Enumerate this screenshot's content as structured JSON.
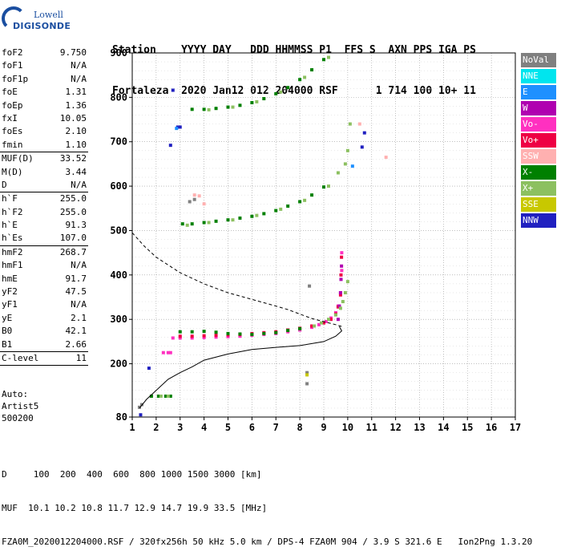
{
  "logo": {
    "brand": "Lowell",
    "product": "DIGISONDE"
  },
  "header": {
    "line1": "Station    YYYY DAY   DDD HHMMSS P1  FFS S  AXN PPS IGA PS",
    "line2": "Fortaleza  2020 Jan12 012 204000 RSF      1 714 100 10+ 11"
  },
  "params": [
    [
      {
        "label": "foF2",
        "value": "9.750"
      },
      {
        "label": "foF1",
        "value": "N/A"
      },
      {
        "label": "foF1p",
        "value": "N/A"
      },
      {
        "label": "foE",
        "value": "1.31"
      },
      {
        "label": "foEp",
        "value": "1.36"
      },
      {
        "label": "fxI",
        "value": "10.05"
      },
      {
        "label": "foEs",
        "value": "2.10"
      },
      {
        "label": "fmin",
        "value": "1.10"
      }
    ],
    [
      {
        "label": "MUF(D)",
        "value": "33.52"
      },
      {
        "label": "M(D)",
        "value": "3.44"
      },
      {
        "label": "D",
        "value": "N/A"
      }
    ],
    [
      {
        "label": "h`F",
        "value": "255.0"
      },
      {
        "label": "h`F2",
        "value": "255.0"
      },
      {
        "label": "h`E",
        "value": "91.3"
      },
      {
        "label": "h`Es",
        "value": "107.0"
      }
    ],
    [
      {
        "label": "hmF2",
        "value": "268.7"
      },
      {
        "label": "hmF1",
        "value": "N/A"
      },
      {
        "label": "hmE",
        "value": "91.7"
      },
      {
        "label": "yF2",
        "value": "47.5"
      },
      {
        "label": "yF1",
        "value": "N/A"
      },
      {
        "label": "yE",
        "value": "2.1"
      },
      {
        "label": "B0",
        "value": "42.1"
      },
      {
        "label": "B1",
        "value": "2.66"
      }
    ],
    [
      {
        "label": "C-level",
        "value": "11"
      }
    ]
  ],
  "auto": {
    "line1": "Auto:",
    "line2": "Artist5",
    "line3": "500200"
  },
  "legend": [
    {
      "label": "NoVal",
      "color": "#808080"
    },
    {
      "label": "NNE",
      "color": "#00e5ee"
    },
    {
      "label": "E",
      "color": "#1e90ff"
    },
    {
      "label": "W",
      "color": "#b000b0"
    },
    {
      "label": "Vo-",
      "color": "#ff30c0"
    },
    {
      "label": "Vo+",
      "color": "#ee0044"
    },
    {
      "label": "SSW",
      "color": "#ffb0b0"
    },
    {
      "label": "X-",
      "color": "#008000"
    },
    {
      "label": "X+",
      "color": "#8cc060"
    },
    {
      "label": "SSE",
      "color": "#c8c800"
    },
    {
      "label": "NNW",
      "color": "#2020c0"
    }
  ],
  "footer": {
    "line1": "D     100  200  400  600  800 1000 1500 3000 [km]",
    "line2": "MUF  10.1 10.2 10.8 11.7 12.9 14.7 19.9 33.5 [MHz]",
    "line3": "FZA0M_2020012204000.RSF / 320fx256h 50 kHz 5.0 km / DPS-4 FZA0M 904 / 3.9 S 321.6 E   Ion2Png 1.3.20"
  },
  "chart_data": {
    "type": "scatter",
    "xlim": [
      1,
      17
    ],
    "ylim": [
      80,
      900
    ],
    "x_ticks": [
      1,
      2,
      3,
      4,
      5,
      6,
      7,
      8,
      9,
      10,
      11,
      12,
      13,
      14,
      15,
      16,
      17
    ],
    "y_ticks": [
      80,
      200,
      300,
      400,
      500,
      600,
      700,
      800,
      900
    ],
    "grid": true,
    "series": [
      {
        "color": "#ff30c0",
        "points": [
          [
            2.3,
            225
          ],
          [
            2.5,
            225
          ],
          [
            2.6,
            225
          ],
          [
            2.7,
            258
          ],
          [
            3.0,
            258
          ],
          [
            3.5,
            258
          ],
          [
            4.0,
            259
          ],
          [
            4.5,
            260
          ],
          [
            5.0,
            261
          ],
          [
            5.5,
            262
          ],
          [
            6.0,
            264
          ],
          [
            6.5,
            266
          ],
          [
            7.0,
            268
          ],
          [
            7.5,
            272
          ],
          [
            8.0,
            276
          ],
          [
            8.5,
            282
          ],
          [
            8.8,
            288
          ],
          [
            9.1,
            295
          ],
          [
            9.3,
            303
          ],
          [
            9.5,
            315
          ],
          [
            9.6,
            330
          ],
          [
            9.7,
            360
          ],
          [
            9.75,
            410
          ],
          [
            9.75,
            450
          ]
        ]
      },
      {
        "color": "#ee0044",
        "points": [
          [
            3.0,
            262
          ],
          [
            3.5,
            262
          ],
          [
            4.0,
            263
          ],
          [
            4.5,
            264
          ],
          [
            5.0,
            265
          ],
          [
            5.5,
            266
          ],
          [
            6.0,
            268
          ],
          [
            6.5,
            270
          ],
          [
            7.0,
            272
          ],
          [
            7.5,
            276
          ],
          [
            8.0,
            280
          ],
          [
            8.5,
            285
          ],
          [
            9.0,
            292
          ],
          [
            9.3,
            300
          ],
          [
            9.5,
            312
          ],
          [
            9.6,
            328
          ],
          [
            9.7,
            355
          ],
          [
            9.72,
            400
          ],
          [
            9.74,
            440
          ]
        ]
      },
      {
        "color": "#b000b0",
        "points": [
          [
            9.6,
            300
          ],
          [
            9.65,
            330
          ],
          [
            9.7,
            360
          ],
          [
            9.72,
            390
          ],
          [
            9.74,
            420
          ]
        ]
      },
      {
        "color": "#008000",
        "points": [
          [
            1.8,
            127
          ],
          [
            2.1,
            127
          ],
          [
            2.4,
            127
          ],
          [
            2.6,
            127
          ],
          [
            3.0,
            272
          ],
          [
            3.5,
            272
          ],
          [
            4.0,
            273
          ],
          [
            4.5,
            271
          ],
          [
            5.0,
            268
          ],
          [
            5.5,
            267
          ],
          [
            6.0,
            266
          ],
          [
            6.5,
            268
          ],
          [
            7.0,
            270
          ],
          [
            7.5,
            275
          ],
          [
            8.0,
            279
          ],
          [
            3.1,
            515
          ],
          [
            3.5,
            515
          ],
          [
            4.0,
            518
          ],
          [
            4.5,
            521
          ],
          [
            5.0,
            524
          ],
          [
            5.5,
            528
          ],
          [
            6.0,
            532
          ],
          [
            6.5,
            538
          ],
          [
            7.0,
            545
          ],
          [
            7.5,
            555
          ],
          [
            8.0,
            565
          ],
          [
            8.5,
            580
          ],
          [
            9.0,
            598
          ],
          [
            3.5,
            773
          ],
          [
            4.0,
            773
          ],
          [
            4.5,
            775
          ],
          [
            5.0,
            778
          ],
          [
            5.5,
            782
          ],
          [
            6.0,
            788
          ],
          [
            6.5,
            797
          ],
          [
            7.0,
            808
          ],
          [
            7.5,
            822
          ],
          [
            8.0,
            840
          ],
          [
            8.5,
            862
          ],
          [
            9.0,
            885
          ]
        ]
      },
      {
        "color": "#8cc060",
        "points": [
          [
            2.2,
            127
          ],
          [
            2.5,
            127
          ],
          [
            8.6,
            285
          ],
          [
            8.9,
            292
          ],
          [
            9.2,
            300
          ],
          [
            9.5,
            310
          ],
          [
            9.7,
            325
          ],
          [
            9.8,
            340
          ],
          [
            9.9,
            360
          ],
          [
            10.0,
            385
          ],
          [
            3.3,
            512
          ],
          [
            4.2,
            518
          ],
          [
            5.2,
            524
          ],
          [
            6.2,
            534
          ],
          [
            7.2,
            548
          ],
          [
            8.2,
            568
          ],
          [
            9.2,
            600
          ],
          [
            9.6,
            630
          ],
          [
            9.9,
            650
          ],
          [
            10.0,
            680
          ],
          [
            10.1,
            740
          ],
          [
            4.2,
            772
          ],
          [
            5.2,
            778
          ],
          [
            6.2,
            790
          ],
          [
            7.2,
            812
          ],
          [
            8.2,
            845
          ],
          [
            9.2,
            890
          ]
        ]
      },
      {
        "color": "#808080",
        "points": [
          [
            1.3,
            102
          ],
          [
            1.4,
            108
          ],
          [
            8.4,
            375
          ],
          [
            3.4,
            565
          ],
          [
            3.6,
            570
          ],
          [
            8.3,
            180
          ],
          [
            8.3,
            155
          ]
        ]
      },
      {
        "color": "#2020c0",
        "points": [
          [
            1.35,
            85
          ],
          [
            1.7,
            190
          ],
          [
            2.6,
            692
          ],
          [
            2.9,
            733
          ],
          [
            3.0,
            733
          ],
          [
            2.7,
            816
          ],
          [
            10.7,
            720
          ],
          [
            10.6,
            688
          ]
        ]
      },
      {
        "color": "#ffb0b0",
        "points": [
          [
            3.6,
            580
          ],
          [
            3.8,
            578
          ],
          [
            10.5,
            740
          ],
          [
            11.6,
            665
          ],
          [
            4.0,
            560
          ]
        ]
      },
      {
        "color": "#c8c800",
        "points": [
          [
            8.3,
            175
          ]
        ]
      },
      {
        "color": "#1e90ff",
        "points": [
          [
            2.85,
            730
          ],
          [
            10.2,
            645
          ]
        ]
      }
    ],
    "curves": [
      {
        "style": "solid",
        "points": [
          [
            1.3,
            100
          ],
          [
            1.6,
            120
          ],
          [
            2.0,
            140
          ],
          [
            2.5,
            165
          ],
          [
            3.0,
            180
          ],
          [
            3.5,
            193
          ],
          [
            4.0,
            208
          ],
          [
            5.0,
            222
          ],
          [
            6.0,
            232
          ],
          [
            7.0,
            237
          ],
          [
            8.0,
            241
          ],
          [
            9.0,
            250
          ],
          [
            9.5,
            262
          ],
          [
            9.75,
            274
          ],
          [
            9.65,
            284
          ]
        ]
      },
      {
        "style": "dashed",
        "points": [
          [
            1.0,
            495
          ],
          [
            1.5,
            465
          ],
          [
            2.0,
            440
          ],
          [
            3.0,
            405
          ],
          [
            4.0,
            380
          ],
          [
            5.0,
            360
          ],
          [
            6.0,
            345
          ],
          [
            7.0,
            330
          ],
          [
            7.5,
            322
          ],
          [
            8.0,
            312
          ],
          [
            8.5,
            302
          ],
          [
            9.0,
            295
          ],
          [
            9.5,
            288
          ],
          [
            9.75,
            284
          ]
        ]
      }
    ]
  }
}
